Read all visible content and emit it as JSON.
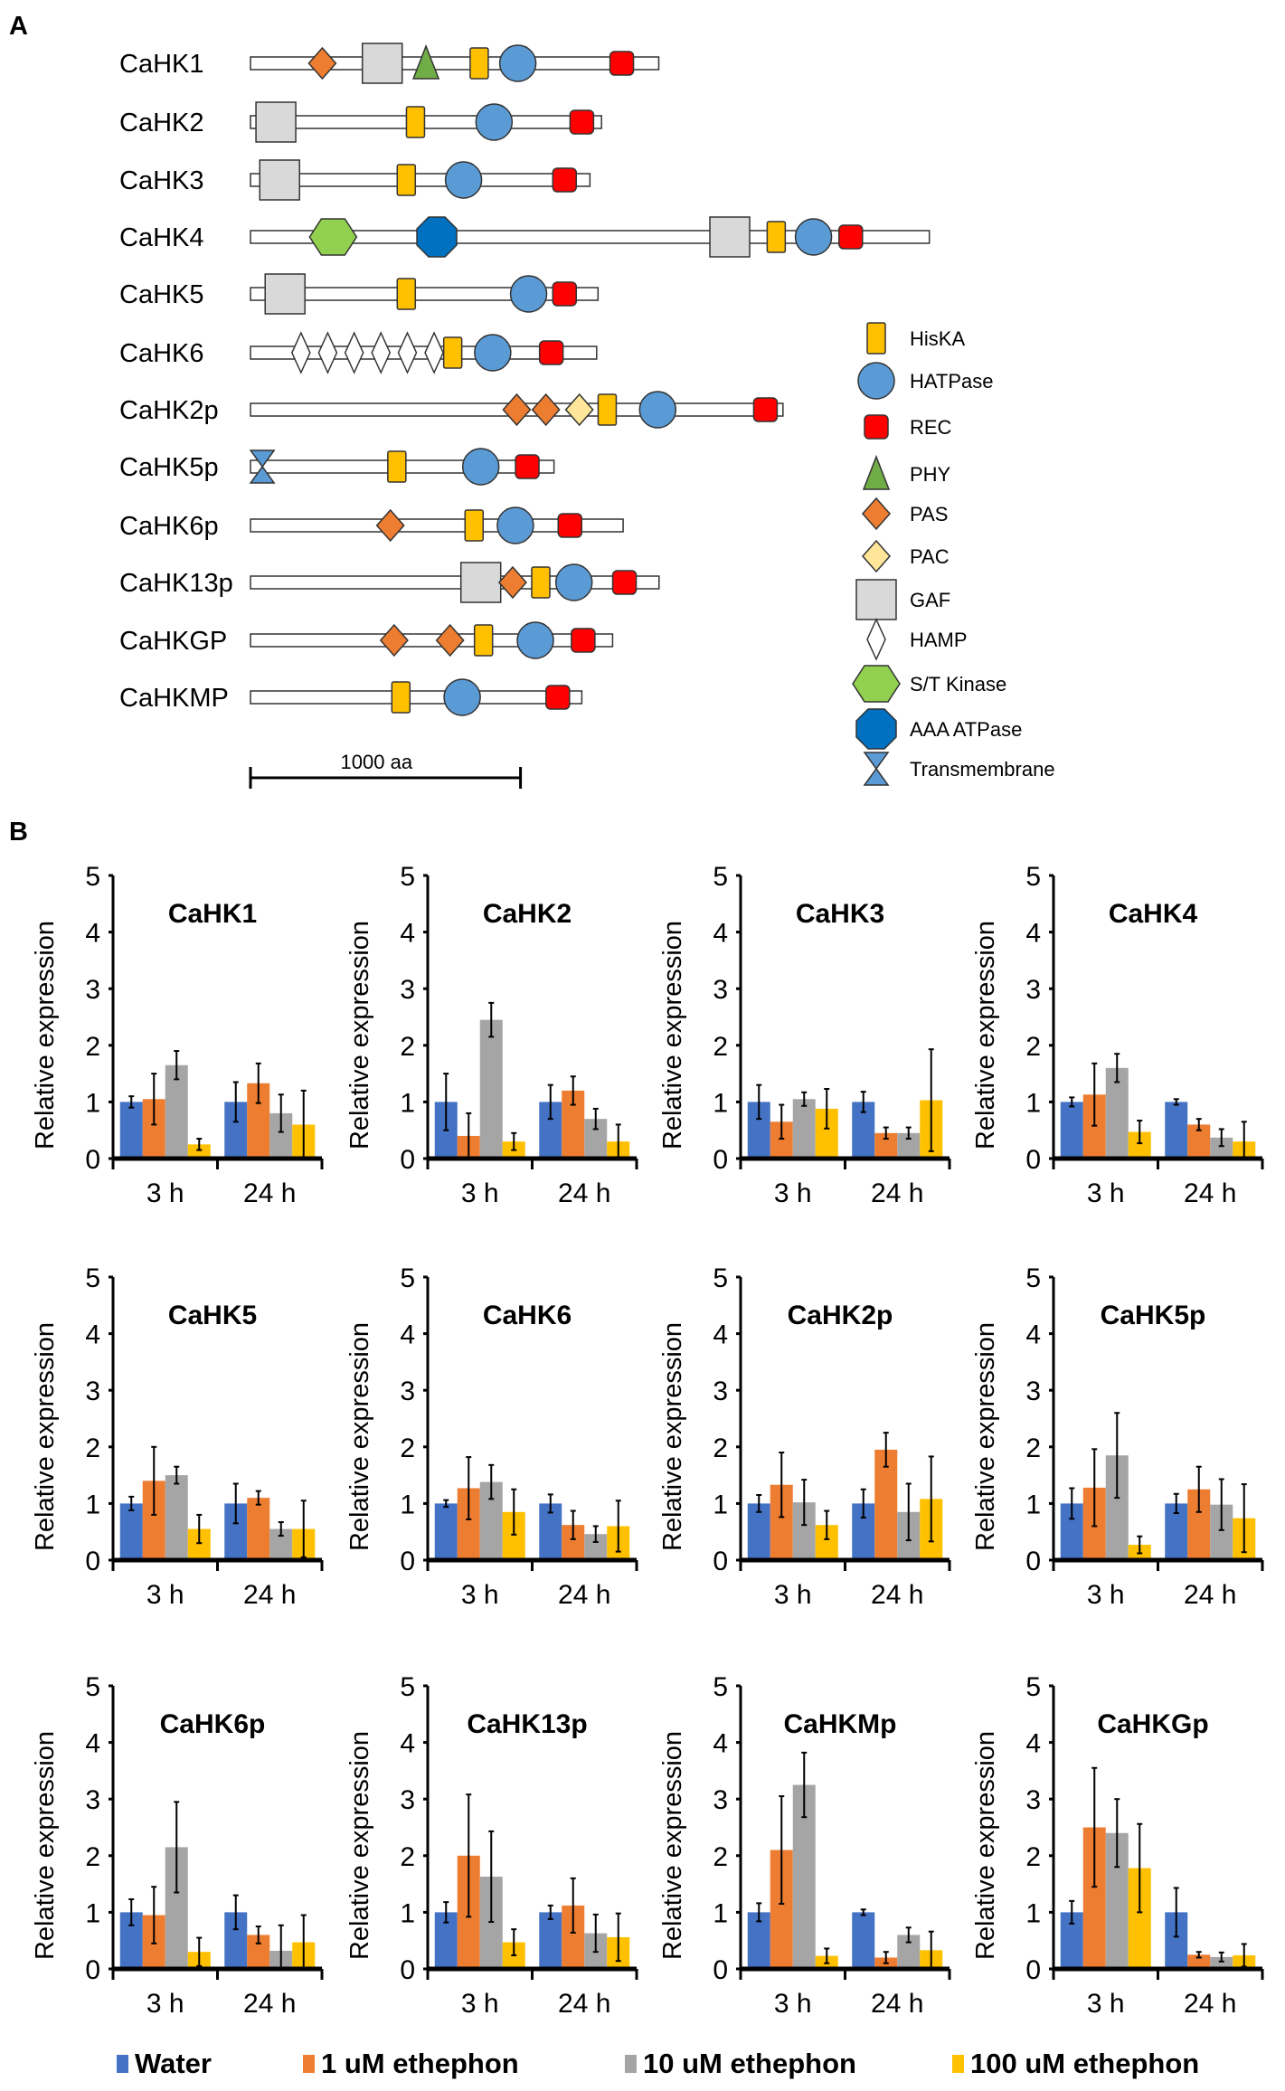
{
  "panel_labels": {
    "a": "A",
    "b": "B"
  },
  "domain_diagram": {
    "scale_bar_label": "1000 aa",
    "scale_bar_aa": 1000,
    "legend": [
      {
        "type": "HisKA",
        "label": "HisKA",
        "color": "#FFC000"
      },
      {
        "type": "HATPase",
        "label": "HATPase",
        "color": "#5B9BD5"
      },
      {
        "type": "REC",
        "label": "REC",
        "color": "#FF0000"
      },
      {
        "type": "PHY",
        "label": "PHY",
        "color": "#70AD47"
      },
      {
        "type": "PAS",
        "label": "PAS",
        "color": "#ED7D31"
      },
      {
        "type": "PAC",
        "label": "PAC",
        "color": "#FFE699"
      },
      {
        "type": "GAF",
        "label": "GAF",
        "color": "#D9D9D9"
      },
      {
        "type": "HAMP",
        "label": "HAMP",
        "color": "#FFFFFF"
      },
      {
        "type": "ST",
        "label": "S/T Kinase",
        "color": "#92D050"
      },
      {
        "type": "AAA",
        "label": "AAA ATPase",
        "color": "#0070C0"
      },
      {
        "type": "TM",
        "label": "Transmembrane",
        "color": "#5B9BD5"
      }
    ],
    "proteins": [
      {
        "name": "CaHK1",
        "length_aa": 1512,
        "domains": [
          [
            "PAS",
            266
          ],
          [
            "GAF",
            488
          ],
          [
            "PHY",
            650
          ],
          [
            "HisKA",
            847
          ],
          [
            "HATPase",
            990
          ],
          [
            "REC",
            1375
          ]
        ]
      },
      {
        "name": "CaHK2",
        "length_aa": 1300,
        "domains": [
          [
            "GAF",
            94
          ],
          [
            "HisKA",
            611
          ],
          [
            "HATPase",
            902
          ],
          [
            "REC",
            1227
          ]
        ]
      },
      {
        "name": "CaHK3",
        "length_aa": 1257,
        "domains": [
          [
            "GAF",
            108
          ],
          [
            "HisKA",
            577
          ],
          [
            "HATPase",
            789
          ],
          [
            "REC",
            1163
          ]
        ]
      },
      {
        "name": "CaHK4",
        "length_aa": 2514,
        "domains": [
          [
            "ST",
            306
          ],
          [
            "AAA",
            690
          ],
          [
            "GAF",
            1775
          ],
          [
            "HisKA",
            1947
          ],
          [
            "HATPase",
            2085
          ],
          [
            "REC",
            2223
          ]
        ]
      },
      {
        "name": "CaHK5",
        "length_aa": 1287,
        "domains": [
          [
            "GAF",
            128
          ],
          [
            "HisKA",
            577
          ],
          [
            "HATPase",
            1030
          ],
          [
            "REC",
            1163
          ]
        ]
      },
      {
        "name": "CaHK6",
        "length_aa": 1282,
        "domains": [
          [
            "HAMP",
            187
          ],
          [
            "HAMP",
            286
          ],
          [
            "HAMP",
            384
          ],
          [
            "HAMP",
            483
          ],
          [
            "HAMP",
            581
          ],
          [
            "HAMP",
            680
          ],
          [
            "HisKA",
            749
          ],
          [
            "HATPase",
            897
          ],
          [
            "REC",
            1114
          ]
        ]
      },
      {
        "name": "CaHK2p",
        "length_aa": 1972,
        "domains": [
          [
            "PAS",
            986
          ],
          [
            "PAS",
            1094
          ],
          [
            "PAC",
            1218
          ],
          [
            "HisKA",
            1321
          ],
          [
            "HATPase",
            1508
          ],
          [
            "REC",
            1907
          ]
        ]
      },
      {
        "name": "CaHK5p",
        "length_aa": 1124,
        "domains": [
          [
            "TM",
            44
          ],
          [
            "HisKA",
            542
          ],
          [
            "HATPase",
            853
          ],
          [
            "REC",
            1025
          ]
        ]
      },
      {
        "name": "CaHK6p",
        "length_aa": 1380,
        "domains": [
          [
            "PAS",
            518
          ],
          [
            "HisKA",
            828
          ],
          [
            "HATPase",
            981
          ],
          [
            "REC",
            1183
          ]
        ]
      },
      {
        "name": "CaHK13p",
        "length_aa": 1513,
        "domains": [
          [
            "GAF",
            853
          ],
          [
            "PAS",
            971
          ],
          [
            "HisKA",
            1075
          ],
          [
            "HATPase",
            1198
          ],
          [
            "REC",
            1385
          ]
        ]
      },
      {
        "name": "CaHKGP",
        "length_aa": 1341,
        "domains": [
          [
            "PAS",
            532
          ],
          [
            "PAS",
            739
          ],
          [
            "HisKA",
            863
          ],
          [
            "HATPase",
            1055
          ],
          [
            "REC",
            1232
          ]
        ]
      },
      {
        "name": "CaHKMP",
        "length_aa": 1227,
        "domains": [
          [
            "HisKA",
            557
          ],
          [
            "HATPase",
            784
          ],
          [
            "REC",
            1138
          ]
        ]
      }
    ]
  },
  "legend": [
    {
      "name": "Water",
      "color": "#4472C4"
    },
    {
      "name": "1 uM ethephon",
      "color": "#ED7D31"
    },
    {
      "name": "10 uM ethephon",
      "color": "#A5A5A5"
    },
    {
      "name": "100 uM ethephon",
      "color": "#FFC000"
    }
  ],
  "chart_data": [
    {
      "type": "bar",
      "title": "CaHK1",
      "ylabel": "Relative expression",
      "ylim": [
        0,
        5
      ],
      "yticks": [
        "0",
        "1",
        "2",
        "3",
        "4",
        "5"
      ],
      "categories": [
        "3 h",
        "24 h"
      ],
      "series": [
        {
          "name": "Water",
          "values": [
            1.0,
            1.0
          ],
          "errors": [
            0.1,
            0.35
          ]
        },
        {
          "name": "1 uM ethephon",
          "values": [
            1.05,
            1.33
          ],
          "errors": [
            0.45,
            0.35
          ]
        },
        {
          "name": "10 uM ethephon",
          "values": [
            1.65,
            0.8
          ],
          "errors": [
            0.25,
            0.33
          ]
        },
        {
          "name": "100 uM ethephon",
          "values": [
            0.25,
            0.6
          ],
          "errors": [
            0.1,
            0.6
          ]
        }
      ]
    },
    {
      "type": "bar",
      "title": "CaHK2",
      "ylabel": "Relative expression",
      "ylim": [
        0,
        5
      ],
      "yticks": [
        "0",
        "1",
        "2",
        "3",
        "4",
        "5"
      ],
      "categories": [
        "3 h",
        "24 h"
      ],
      "series": [
        {
          "name": "Water",
          "values": [
            1.0,
            1.0
          ],
          "errors": [
            0.5,
            0.3
          ]
        },
        {
          "name": "1 uM ethephon",
          "values": [
            0.4,
            1.2
          ],
          "errors": [
            0.4,
            0.25
          ]
        },
        {
          "name": "10 uM ethephon",
          "values": [
            2.45,
            0.7
          ],
          "errors": [
            0.3,
            0.18
          ]
        },
        {
          "name": "100 uM ethephon",
          "values": [
            0.3,
            0.3
          ],
          "errors": [
            0.15,
            0.3
          ]
        }
      ]
    },
    {
      "type": "bar",
      "title": "CaHK3",
      "ylabel": "Relative expression",
      "ylim": [
        0,
        5
      ],
      "yticks": [
        "0",
        "1",
        "2",
        "3",
        "4",
        "5"
      ],
      "categories": [
        "3 h",
        "24 h"
      ],
      "series": [
        {
          "name": "Water",
          "values": [
            1.0,
            1.0
          ],
          "errors": [
            0.3,
            0.18
          ]
        },
        {
          "name": "1 uM ethephon",
          "values": [
            0.65,
            0.45
          ],
          "errors": [
            0.3,
            0.1
          ]
        },
        {
          "name": "10 uM ethephon",
          "values": [
            1.05,
            0.45
          ],
          "errors": [
            0.12,
            0.1
          ]
        },
        {
          "name": "100 uM ethephon",
          "values": [
            0.88,
            1.03
          ],
          "errors": [
            0.35,
            0.9
          ]
        }
      ]
    },
    {
      "type": "bar",
      "title": "CaHK4",
      "ylabel": "Relative expression",
      "ylim": [
        0,
        5
      ],
      "yticks": [
        "0",
        "1",
        "2",
        "3",
        "4",
        "5"
      ],
      "categories": [
        "3 h",
        "24 h"
      ],
      "series": [
        {
          "name": "Water",
          "values": [
            1.0,
            1.0
          ],
          "errors": [
            0.08,
            0.05
          ]
        },
        {
          "name": "1 uM ethephon",
          "values": [
            1.13,
            0.6
          ],
          "errors": [
            0.55,
            0.1
          ]
        },
        {
          "name": "10 uM ethephon",
          "values": [
            1.6,
            0.37
          ],
          "errors": [
            0.25,
            0.15
          ]
        },
        {
          "name": "100 uM ethephon",
          "values": [
            0.47,
            0.3
          ],
          "errors": [
            0.2,
            0.35
          ]
        }
      ]
    },
    {
      "type": "bar",
      "title": "CaHK5",
      "ylabel": "Relative expression",
      "ylim": [
        0,
        5
      ],
      "yticks": [
        "0",
        "1",
        "2",
        "3",
        "4",
        "5"
      ],
      "categories": [
        "3 h",
        "24 h"
      ],
      "series": [
        {
          "name": "Water",
          "values": [
            1.0,
            1.0
          ],
          "errors": [
            0.12,
            0.35
          ]
        },
        {
          "name": "1 uM ethephon",
          "values": [
            1.4,
            1.1
          ],
          "errors": [
            0.6,
            0.12
          ]
        },
        {
          "name": "10 uM ethephon",
          "values": [
            1.5,
            0.55
          ],
          "errors": [
            0.15,
            0.12
          ]
        },
        {
          "name": "100 uM ethephon",
          "values": [
            0.55,
            0.55
          ],
          "errors": [
            0.25,
            0.5
          ]
        }
      ]
    },
    {
      "type": "bar",
      "title": "CaHK6",
      "ylabel": "Relative expression",
      "ylim": [
        0,
        5
      ],
      "yticks": [
        "0",
        "1",
        "2",
        "3",
        "4",
        "5"
      ],
      "categories": [
        "3 h",
        "24 h"
      ],
      "series": [
        {
          "name": "Water",
          "values": [
            1.0,
            1.0
          ],
          "errors": [
            0.06,
            0.16
          ]
        },
        {
          "name": "1 uM ethephon",
          "values": [
            1.27,
            0.62
          ],
          "errors": [
            0.55,
            0.25
          ]
        },
        {
          "name": "10 uM ethephon",
          "values": [
            1.38,
            0.46
          ],
          "errors": [
            0.3,
            0.14
          ]
        },
        {
          "name": "100 uM ethephon",
          "values": [
            0.85,
            0.6
          ],
          "errors": [
            0.4,
            0.45
          ]
        }
      ]
    },
    {
      "type": "bar",
      "title": "CaHK2p",
      "ylabel": "Relative expression",
      "ylim": [
        0,
        5
      ],
      "yticks": [
        "0",
        "1",
        "2",
        "3",
        "4",
        "5"
      ],
      "categories": [
        "3 h",
        "24 h"
      ],
      "series": [
        {
          "name": "Water",
          "values": [
            1.0,
            1.0
          ],
          "errors": [
            0.15,
            0.25
          ]
        },
        {
          "name": "1 uM ethephon",
          "values": [
            1.33,
            1.95
          ],
          "errors": [
            0.57,
            0.3
          ]
        },
        {
          "name": "10 uM ethephon",
          "values": [
            1.02,
            0.85
          ],
          "errors": [
            0.4,
            0.5
          ]
        },
        {
          "name": "100 uM ethephon",
          "values": [
            0.62,
            1.08
          ],
          "errors": [
            0.25,
            0.75
          ]
        }
      ]
    },
    {
      "type": "bar",
      "title": "CaHK5p",
      "ylabel": "Relative expression",
      "ylim": [
        0,
        5
      ],
      "yticks": [
        "0",
        "1",
        "2",
        "3",
        "4",
        "5"
      ],
      "categories": [
        "3 h",
        "24 h"
      ],
      "series": [
        {
          "name": "Water",
          "values": [
            1.0,
            1.0
          ],
          "errors": [
            0.27,
            0.17
          ]
        },
        {
          "name": "1 uM ethephon",
          "values": [
            1.28,
            1.25
          ],
          "errors": [
            0.68,
            0.4
          ]
        },
        {
          "name": "10 uM ethephon",
          "values": [
            1.85,
            0.98
          ],
          "errors": [
            0.75,
            0.45
          ]
        },
        {
          "name": "100 uM ethephon",
          "values": [
            0.27,
            0.74
          ],
          "errors": [
            0.15,
            0.6
          ]
        }
      ]
    },
    {
      "type": "bar",
      "title": "CaHK6p",
      "ylabel": "Relative expression",
      "ylim": [
        0,
        5
      ],
      "yticks": [
        "0",
        "1",
        "2",
        "3",
        "4",
        "5"
      ],
      "categories": [
        "3 h",
        "24 h"
      ],
      "series": [
        {
          "name": "Water",
          "values": [
            1.0,
            1.0
          ],
          "errors": [
            0.23,
            0.3
          ]
        },
        {
          "name": "1 uM ethephon",
          "values": [
            0.95,
            0.6
          ],
          "errors": [
            0.5,
            0.15
          ]
        },
        {
          "name": "10 uM ethephon",
          "values": [
            2.15,
            0.32
          ],
          "errors": [
            0.8,
            0.45
          ]
        },
        {
          "name": "100 uM ethephon",
          "values": [
            0.3,
            0.47
          ],
          "errors": [
            0.25,
            0.48
          ]
        }
      ]
    },
    {
      "type": "bar",
      "title": "CaHK13p",
      "ylabel": "Relative expression",
      "ylim": [
        0,
        5
      ],
      "yticks": [
        "0",
        "1",
        "2",
        "3",
        "4",
        "5"
      ],
      "categories": [
        "3 h",
        "24 h"
      ],
      "series": [
        {
          "name": "Water",
          "values": [
            1.0,
            1.0
          ],
          "errors": [
            0.18,
            0.12
          ]
        },
        {
          "name": "1 uM ethephon",
          "values": [
            2.0,
            1.12
          ],
          "errors": [
            1.08,
            0.48
          ]
        },
        {
          "name": "10 uM ethephon",
          "values": [
            1.63,
            0.63
          ],
          "errors": [
            0.8,
            0.33
          ]
        },
        {
          "name": "100 uM ethephon",
          "values": [
            0.47,
            0.56
          ],
          "errors": [
            0.23,
            0.42
          ]
        }
      ]
    },
    {
      "type": "bar",
      "title": "CaHKMp",
      "ylabel": "Relative expression",
      "ylim": [
        0,
        5
      ],
      "yticks": [
        "0",
        "1",
        "2",
        "3",
        "4",
        "5"
      ],
      "categories": [
        "3 h",
        "24 h"
      ],
      "series": [
        {
          "name": "Water",
          "values": [
            1.0,
            1.0
          ],
          "errors": [
            0.16,
            0.05
          ]
        },
        {
          "name": "1 uM ethephon",
          "values": [
            2.1,
            0.2
          ],
          "errors": [
            0.95,
            0.1
          ]
        },
        {
          "name": "10 uM ethephon",
          "values": [
            3.25,
            0.6
          ],
          "errors": [
            0.57,
            0.13
          ]
        },
        {
          "name": "100 uM ethephon",
          "values": [
            0.23,
            0.33
          ],
          "errors": [
            0.13,
            0.33
          ]
        }
      ]
    },
    {
      "type": "bar",
      "title": "CaHKGp",
      "ylabel": "Relative expression",
      "ylim": [
        0,
        5
      ],
      "yticks": [
        "0",
        "1",
        "2",
        "3",
        "4",
        "5"
      ],
      "categories": [
        "3 h",
        "24 h"
      ],
      "series": [
        {
          "name": "Water",
          "values": [
            1.0,
            1.0
          ],
          "errors": [
            0.2,
            0.43
          ]
        },
        {
          "name": "1 uM ethephon",
          "values": [
            2.5,
            0.25
          ],
          "errors": [
            1.05,
            0.05
          ]
        },
        {
          "name": "10 uM ethephon",
          "values": [
            2.4,
            0.21
          ],
          "errors": [
            0.6,
            0.08
          ]
        },
        {
          "name": "100 uM ethephon",
          "values": [
            1.78,
            0.24
          ],
          "errors": [
            0.78,
            0.2
          ]
        }
      ]
    }
  ]
}
